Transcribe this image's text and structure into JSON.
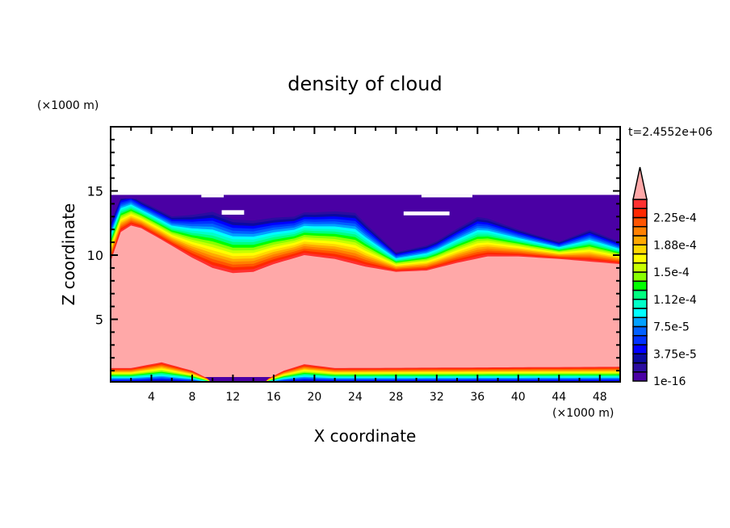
{
  "chart_data": {
    "type": "heatmap",
    "subtype": "filled-contour",
    "title": "density of cloud",
    "xlabel": "X coordinate",
    "ylabel": "Z coordinate",
    "x_unit": "(×1000 m)",
    "y_unit": "(×1000 m)",
    "time_label": "t=2.4552e+06",
    "xlim": [
      0,
      50
    ],
    "ylim": [
      0,
      20
    ],
    "xticks": [
      4,
      8,
      12,
      16,
      20,
      24,
      28,
      32,
      36,
      40,
      44,
      48
    ],
    "yticks": [
      5,
      10,
      15
    ],
    "cloud_top_km": 14.7,
    "cloud_core_top_profile": {
      "x": [
        0,
        1,
        2,
        3,
        5,
        8,
        10,
        12,
        14,
        16,
        19,
        22,
        25,
        28,
        31,
        34,
        37,
        40,
        44,
        47,
        50
      ],
      "z": [
        9.5,
        11.8,
        12.3,
        12.1,
        11.2,
        9.8,
        9.0,
        8.6,
        8.7,
        9.3,
        10.0,
        9.7,
        9.1,
        8.7,
        8.8,
        9.4,
        9.9,
        9.9,
        9.7,
        9.5,
        9.3
      ]
    },
    "colorbar": {
      "levels_min": 0,
      "level_step": 1.25e-05,
      "n_levels": 20,
      "extend": "max",
      "tick_labels": [
        "1e-16",
        "3.75e-5",
        "7.5e-5",
        "1.12e-4",
        "1.5e-4",
        "1.88e-4",
        "2.25e-4"
      ],
      "colors": [
        "#4a00a4",
        "#2a0ca0",
        "#0a0aa0",
        "#0000ff",
        "#0032ff",
        "#0060ff",
        "#00a0ff",
        "#00ffff",
        "#00ffc8",
        "#00ff80",
        "#00ff00",
        "#88ff00",
        "#c8ff00",
        "#ffff00",
        "#ffd800",
        "#ffa800",
        "#ff8000",
        "#ff5400",
        "#ff2800",
        "#ff3030"
      ],
      "over_color": "#ffa8a8"
    }
  }
}
